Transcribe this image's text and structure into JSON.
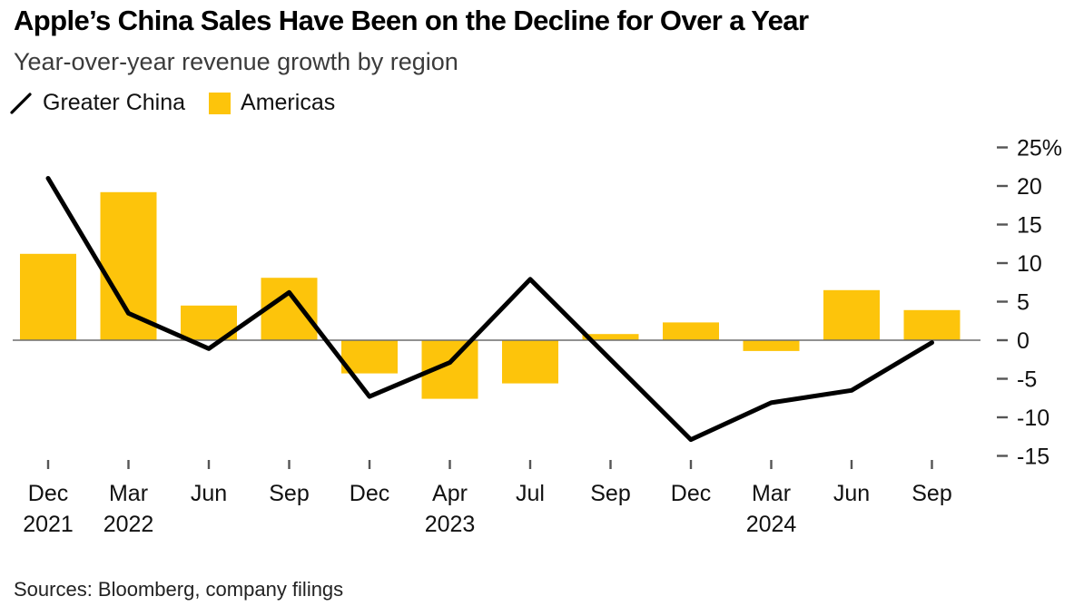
{
  "header": {
    "title": "Apple’s China Sales Have Been on the Decline for Over a Year",
    "subtitle": "Year-over-year revenue growth by region"
  },
  "footer": {
    "sources_text": "Sources: Bloomberg, company filings"
  },
  "chart_data": {
    "type": "bar+line",
    "title": "Apple’s China Sales Have Been on the Decline for Over a Year",
    "subtitle": "Year-over-year revenue growth by region",
    "legend_position": "top-left",
    "x_axis": {
      "categories": [
        {
          "month": "Dec",
          "year": "2021"
        },
        {
          "month": "Mar",
          "year": "2022"
        },
        {
          "month": "Jun"
        },
        {
          "month": "Sep"
        },
        {
          "month": "Dec"
        },
        {
          "month": "Apr",
          "year": "2023"
        },
        {
          "month": "Jul"
        },
        {
          "month": "Sep"
        },
        {
          "month": "Dec"
        },
        {
          "month": "Mar",
          "year": "2024"
        },
        {
          "month": "Jun"
        },
        {
          "month": "Sep"
        }
      ]
    },
    "y_axis": {
      "unit": "%",
      "position": "right",
      "ylim": [
        -15,
        25
      ],
      "grid": false,
      "ticks": [
        {
          "value": 25,
          "label": "25%"
        },
        {
          "value": 20,
          "label": "20"
        },
        {
          "value": 15,
          "label": "15"
        },
        {
          "value": 10,
          "label": "10"
        },
        {
          "value": 5,
          "label": "5"
        },
        {
          "value": 0,
          "label": "0"
        },
        {
          "value": -5,
          "label": "-5"
        },
        {
          "value": -10,
          "label": "-10"
        },
        {
          "value": -15,
          "label": "-15"
        }
      ]
    },
    "series": [
      {
        "name": "Greater China",
        "type": "line",
        "color": "#000000",
        "values": [
          21.0,
          3.5,
          -1.1,
          6.2,
          -7.3,
          -2.9,
          7.9,
          -2.5,
          -12.9,
          -8.1,
          -6.5,
          -0.3
        ]
      },
      {
        "name": "Americas",
        "type": "bar",
        "color": "#FDC40B",
        "values": [
          11.2,
          19.2,
          4.5,
          8.1,
          -4.3,
          -7.6,
          -5.6,
          0.8,
          2.3,
          -1.4,
          6.5,
          3.9
        ]
      }
    ],
    "axis_line_color": "#6d6d6d",
    "tick_color": "#555555"
  }
}
